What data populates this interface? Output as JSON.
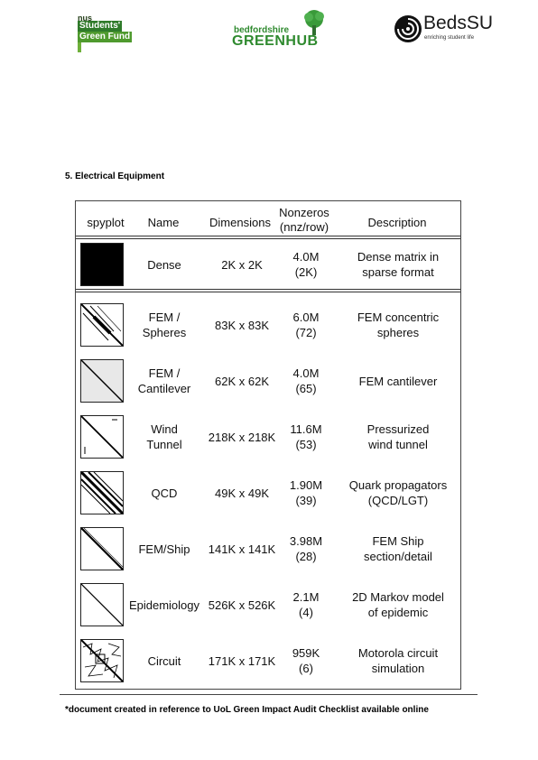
{
  "logos": {
    "nus": {
      "mark": "nus",
      "line1": "Students'",
      "line2": "Green Fund"
    },
    "greenhub": {
      "small": "bedfordshire",
      "big": "GREENHUB"
    },
    "bedssu": {
      "name": "BedsSU",
      "tagline": "enriching student life"
    }
  },
  "section_heading": "5. Electrical Equipment",
  "table": {
    "headers": {
      "spyplot": "spyplot",
      "name": "Name",
      "dimensions": "Dimensions",
      "nonzeros": "Nonzeros\n(nnz/row)",
      "description": "Description"
    },
    "rows": [
      {
        "spy_icon": "dense-matrix-plot",
        "name": "Dense",
        "dimensions": "2K x 2K",
        "nonzeros": "4.0M\n(2K)",
        "description": "Dense matrix in\nsparse format"
      },
      {
        "spy_icon": "fem-spheres-plot",
        "name": "FEM /\nSpheres",
        "dimensions": "83K x 83K",
        "nonzeros": "6.0M\n(72)",
        "description": "FEM concentric\nspheres"
      },
      {
        "spy_icon": "fem-cantilever-plot",
        "name": "FEM /\nCantilever",
        "dimensions": "62K x 62K",
        "nonzeros": "4.0M\n(65)",
        "description": "FEM cantilever"
      },
      {
        "spy_icon": "wind-tunnel-plot",
        "name": "Wind\nTunnel",
        "dimensions": "218K x 218K",
        "nonzeros": "11.6M\n(53)",
        "description": "Pressurized\nwind tunnel"
      },
      {
        "spy_icon": "qcd-plot",
        "name": "QCD",
        "dimensions": "49K x 49K",
        "nonzeros": "1.90M\n(39)",
        "description": "Quark propagators\n(QCD/LGT)"
      },
      {
        "spy_icon": "fem-ship-plot",
        "name": "FEM/Ship",
        "dimensions": "141K x 141K",
        "nonzeros": "3.98M\n(28)",
        "description": "FEM Ship\nsection/detail"
      },
      {
        "spy_icon": "epidemiology-plot",
        "name": "Epidemiology",
        "dimensions": "526K x 526K",
        "nonzeros": "2.1M\n(4)",
        "description": "2D Markov model\nof epidemic"
      },
      {
        "spy_icon": "circuit-plot",
        "name": "Circuit",
        "dimensions": "171K x 171K",
        "nonzeros": "959K\n(6)",
        "description": "Motorola circuit\nsimulation"
      }
    ]
  },
  "footnote": "*document created in reference to UoL Green Impact Audit Checklist available online"
}
